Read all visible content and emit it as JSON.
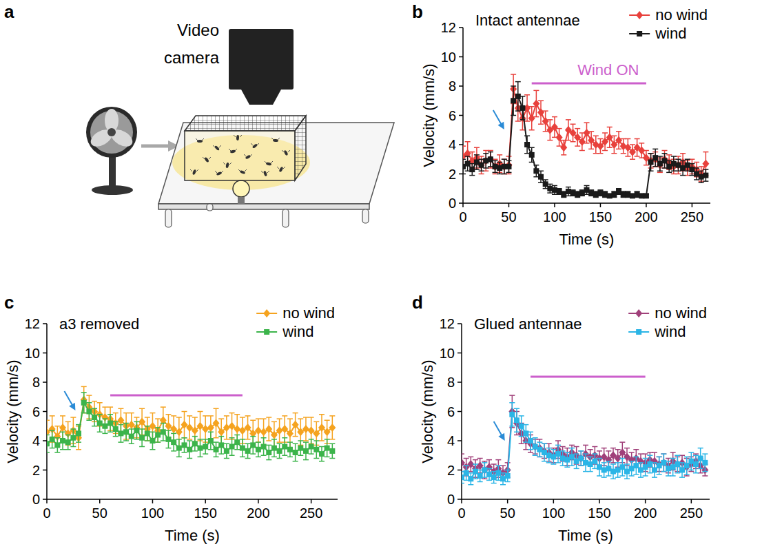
{
  "diagram": {
    "panel": "a",
    "label": "Video camera"
  },
  "chart_data": [
    {
      "panel": "b",
      "type": "line",
      "title": "Intact antennae",
      "x_label": "Time (s)",
      "y_label": "Velocity (mm/s)",
      "annotation": "Wind ON",
      "wind_period": [
        75,
        200
      ],
      "stimulus_time": 45,
      "xlim": [
        0,
        270
      ],
      "xticks": [
        0,
        50,
        100,
        150,
        200,
        250
      ],
      "ylim": [
        0,
        12
      ],
      "yticks": [
        0,
        2,
        4,
        6,
        8,
        10,
        12
      ],
      "grid": false,
      "legend": "top-right",
      "x": [
        0,
        5,
        10,
        15,
        20,
        25,
        30,
        35,
        40,
        45,
        50,
        55,
        60,
        65,
        70,
        75,
        80,
        85,
        90,
        95,
        100,
        105,
        110,
        115,
        120,
        125,
        130,
        135,
        140,
        145,
        150,
        155,
        160,
        165,
        170,
        175,
        180,
        185,
        190,
        195,
        200,
        205,
        210,
        215,
        220,
        225,
        230,
        235,
        240,
        245,
        250,
        255,
        260,
        265
      ],
      "series": [
        {
          "name": "no wind",
          "color": "#e8413c",
          "marker": "diamond",
          "values": [
            3.2,
            3.4,
            2.9,
            3.1,
            2.6,
            2.9,
            3.0,
            2.5,
            2.7,
            2.5,
            2.6,
            7.8,
            6.5,
            5.8,
            6.5,
            5.8,
            6.8,
            6.2,
            5.6,
            5.0,
            5.2,
            4.5,
            3.8,
            5.0,
            4.8,
            4.5,
            4.2,
            4.8,
            4.3,
            4.0,
            3.9,
            4.2,
            4.5,
            4.0,
            4.3,
            3.9,
            3.8,
            3.5,
            3.8,
            3.6,
            3.1,
            2.9,
            3.0,
            2.6,
            3.0,
            2.8,
            2.5,
            2.6,
            2.8,
            2.4,
            2.5,
            2.3,
            2.0,
            2.7
          ],
          "errors": [
            0.7,
            0.8,
            0.6,
            0.7,
            0.6,
            0.7,
            0.6,
            0.5,
            0.6,
            0.5,
            0.6,
            1.0,
            0.9,
            0.8,
            0.9,
            0.8,
            0.9,
            0.8,
            0.7,
            0.7,
            0.7,
            0.6,
            0.5,
            0.7,
            0.6,
            0.6,
            0.6,
            0.7,
            0.6,
            0.6,
            0.5,
            0.6,
            0.7,
            0.6,
            0.6,
            0.5,
            0.6,
            0.5,
            0.6,
            0.5,
            0.5,
            0.5,
            0.5,
            0.5,
            0.6,
            0.5,
            0.5,
            0.6,
            0.6,
            0.5,
            0.5,
            0.5,
            0.5,
            0.8
          ]
        },
        {
          "name": "wind",
          "color": "#1a1a1a",
          "marker": "square",
          "values": [
            2.5,
            2.7,
            2.3,
            2.8,
            2.6,
            2.9,
            3.0,
            2.5,
            2.4,
            2.5,
            2.5,
            7.0,
            7.3,
            6.5,
            4.0,
            3.3,
            2.2,
            1.8,
            1.3,
            1.0,
            0.9,
            0.8,
            0.6,
            0.8,
            0.7,
            0.6,
            0.7,
            0.9,
            0.7,
            0.6,
            0.7,
            0.6,
            0.5,
            0.6,
            0.8,
            0.6,
            0.6,
            0.5,
            0.6,
            0.5,
            0.5,
            2.8,
            3.1,
            2.7,
            2.9,
            2.5,
            2.7,
            2.6,
            2.4,
            2.6,
            2.3,
            2.0,
            1.8,
            1.9
          ],
          "errors": [
            0.5,
            0.5,
            0.4,
            0.5,
            0.4,
            0.5,
            0.5,
            0.4,
            0.4,
            0.5,
            0.4,
            1.0,
            1.0,
            0.8,
            0.6,
            0.5,
            0.4,
            0.4,
            0.3,
            0.3,
            0.3,
            0.2,
            0.2,
            0.3,
            0.2,
            0.2,
            0.2,
            0.3,
            0.2,
            0.2,
            0.2,
            0.2,
            0.1,
            0.2,
            0.2,
            0.2,
            0.2,
            0.1,
            0.2,
            0.1,
            0.1,
            0.6,
            0.6,
            0.5,
            0.5,
            0.4,
            0.5,
            0.4,
            0.5,
            0.4,
            0.4,
            0.4,
            0.4,
            0.4
          ]
        }
      ]
    },
    {
      "panel": "c",
      "type": "line",
      "title": "a3 removed",
      "x_label": "Time (s)",
      "y_label": "Velocity (mm/s)",
      "wind_period": [
        60,
        185
      ],
      "stimulus_time": 27,
      "xlim": [
        0,
        275
      ],
      "xticks": [
        0,
        50,
        100,
        150,
        200,
        250
      ],
      "ylim": [
        0,
        12
      ],
      "yticks": [
        0,
        2,
        4,
        6,
        8,
        10,
        12
      ],
      "grid": false,
      "legend": "top-right",
      "x": [
        0,
        5,
        10,
        15,
        20,
        25,
        30,
        35,
        40,
        45,
        50,
        55,
        60,
        65,
        70,
        75,
        80,
        85,
        90,
        95,
        100,
        105,
        110,
        115,
        120,
        125,
        130,
        135,
        140,
        145,
        150,
        155,
        160,
        165,
        170,
        175,
        180,
        185,
        190,
        195,
        200,
        205,
        210,
        215,
        220,
        225,
        230,
        235,
        240,
        245,
        250,
        255,
        260,
        265,
        270
      ],
      "series": [
        {
          "name": "no wind",
          "color": "#f5a31f",
          "marker": "diamond",
          "values": [
            4.6,
            4.8,
            4.3,
            4.9,
            4.5,
            4.7,
            4.2,
            6.8,
            6.3,
            6.0,
            5.8,
            5.6,
            5.5,
            5.2,
            5.4,
            5.0,
            5.1,
            4.9,
            5.3,
            4.8,
            5.0,
            4.7,
            5.4,
            5.0,
            4.8,
            4.6,
            5.1,
            4.9,
            4.7,
            5.0,
            4.8,
            4.9,
            5.2,
            4.6,
            4.9,
            5.0,
            4.8,
            4.7,
            4.9,
            4.5,
            4.7,
            4.6,
            4.8,
            4.4,
            4.7,
            4.8,
            4.5,
            5.1,
            4.6,
            4.8,
            4.7,
            4.5,
            4.9,
            4.6,
            4.9
          ],
          "errors": [
            0.8,
            0.9,
            0.7,
            0.8,
            0.8,
            0.9,
            0.8,
            0.9,
            0.8,
            0.7,
            0.8,
            0.7,
            0.8,
            0.7,
            0.8,
            0.9,
            0.8,
            0.7,
            0.9,
            0.8,
            0.9,
            0.8,
            0.9,
            0.8,
            0.9,
            1.0,
            0.9,
            0.8,
            0.9,
            1.0,
            0.9,
            0.8,
            1.0,
            0.9,
            0.8,
            0.9,
            1.0,
            0.9,
            0.8,
            0.9,
            0.8,
            0.9,
            0.8,
            0.9,
            0.8,
            0.9,
            1.0,
            0.8,
            0.9,
            0.8,
            0.9,
            0.8,
            0.9,
            0.8,
            0.8
          ]
        },
        {
          "name": "wind",
          "color": "#3cb44b",
          "marker": "square",
          "values": [
            3.8,
            4.1,
            3.7,
            4.0,
            3.9,
            4.2,
            4.5,
            6.6,
            6.0,
            5.6,
            5.2,
            5.0,
            5.2,
            4.8,
            4.5,
            4.6,
            4.3,
            4.7,
            4.2,
            4.5,
            4.0,
            4.4,
            4.6,
            4.1,
            3.9,
            3.5,
            3.7,
            3.4,
            3.8,
            3.5,
            3.6,
            4.0,
            3.4,
            3.7,
            3.3,
            3.6,
            3.9,
            3.5,
            3.3,
            3.7,
            3.4,
            3.6,
            3.2,
            3.5,
            3.3,
            3.6,
            3.4,
            3.2,
            3.5,
            3.3,
            3.6,
            3.4,
            3.1,
            3.5,
            3.3
          ],
          "errors": [
            0.6,
            0.6,
            0.5,
            0.6,
            0.5,
            0.6,
            0.6,
            0.7,
            0.6,
            0.6,
            0.6,
            0.5,
            0.6,
            0.5,
            0.6,
            0.6,
            0.5,
            0.6,
            0.6,
            0.5,
            0.6,
            0.5,
            0.6,
            0.6,
            0.6,
            0.6,
            0.5,
            0.6,
            0.5,
            0.6,
            0.5,
            0.6,
            0.5,
            0.6,
            0.5,
            0.6,
            0.5,
            0.6,
            0.5,
            0.6,
            0.5,
            0.6,
            0.5,
            0.6,
            0.5,
            0.6,
            0.5,
            0.6,
            0.5,
            0.6,
            0.5,
            0.6,
            0.5,
            0.6,
            0.5
          ]
        }
      ]
    },
    {
      "panel": "d",
      "type": "line",
      "title": "Glued antennae",
      "x_label": "Time (s)",
      "y_label": "Velocity (mm/s)",
      "wind_period": [
        75,
        200
      ],
      "stimulus_time": 47,
      "xlim": [
        0,
        270
      ],
      "xticks": [
        0,
        50,
        100,
        150,
        200,
        250
      ],
      "ylim": [
        0,
        12
      ],
      "yticks": [
        0,
        2,
        4,
        6,
        8,
        10,
        12
      ],
      "grid": false,
      "legend": "top-right",
      "x": [
        0,
        5,
        10,
        15,
        20,
        25,
        30,
        35,
        40,
        45,
        50,
        55,
        60,
        65,
        70,
        75,
        80,
        85,
        90,
        95,
        100,
        105,
        110,
        115,
        120,
        125,
        130,
        135,
        140,
        145,
        150,
        155,
        160,
        165,
        170,
        175,
        180,
        185,
        190,
        195,
        200,
        205,
        210,
        215,
        220,
        225,
        230,
        235,
        240,
        245,
        250,
        255,
        260,
        265
      ],
      "series": [
        {
          "name": "no wind",
          "color": "#a0407a",
          "marker": "diamond",
          "values": [
            2.5,
            2.2,
            2.4,
            2.1,
            2.3,
            2.0,
            2.2,
            1.9,
            2.1,
            1.8,
            2.0,
            6.0,
            5.2,
            4.5,
            4.0,
            3.8,
            3.6,
            3.5,
            3.3,
            3.2,
            3.0,
            3.4,
            3.1,
            2.9,
            3.2,
            3.0,
            2.8,
            3.1,
            2.9,
            3.0,
            2.8,
            2.9,
            2.7,
            3.0,
            2.8,
            3.2,
            2.9,
            2.7,
            2.8,
            2.6,
            2.5,
            2.7,
            2.6,
            2.4,
            2.5,
            2.3,
            2.6,
            2.4,
            2.5,
            2.2,
            2.4,
            2.6,
            2.3,
            2.0
          ],
          "errors": [
            0.6,
            0.6,
            0.5,
            0.6,
            0.5,
            0.6,
            0.5,
            0.5,
            0.6,
            0.5,
            0.5,
            1.1,
            0.8,
            0.7,
            0.6,
            0.6,
            0.5,
            0.6,
            0.5,
            0.6,
            0.5,
            0.6,
            0.5,
            0.6,
            0.5,
            0.6,
            0.5,
            0.6,
            0.5,
            0.6,
            0.5,
            0.6,
            0.6,
            0.5,
            0.6,
            0.7,
            0.6,
            0.5,
            0.6,
            0.5,
            0.6,
            0.5,
            0.6,
            0.5,
            0.6,
            0.5,
            0.6,
            0.5,
            0.5,
            0.6,
            0.5,
            0.5,
            0.5,
            0.4
          ]
        },
        {
          "name": "wind",
          "color": "#2bb5e6",
          "marker": "square",
          "values": [
            1.5,
            1.8,
            1.4,
            1.9,
            1.6,
            2.0,
            1.7,
            1.5,
            1.8,
            1.4,
            1.6,
            5.8,
            5.4,
            5.0,
            4.5,
            4.0,
            3.6,
            3.4,
            3.2,
            3.0,
            2.9,
            3.1,
            2.8,
            2.7,
            2.9,
            2.6,
            2.8,
            2.5,
            2.4,
            2.6,
            2.2,
            2.0,
            2.1,
            1.9,
            2.0,
            2.2,
            1.9,
            2.1,
            2.3,
            2.0,
            2.2,
            2.4,
            2.0,
            2.3,
            2.5,
            2.1,
            2.2,
            2.4,
            2.0,
            2.3,
            2.6,
            2.4,
            2.8,
            2.5
          ],
          "errors": [
            0.4,
            0.5,
            0.4,
            0.5,
            0.4,
            0.5,
            0.4,
            0.4,
            0.5,
            0.4,
            0.4,
            0.8,
            0.8,
            0.7,
            0.6,
            0.6,
            0.6,
            0.5,
            0.6,
            0.5,
            0.5,
            0.6,
            0.5,
            0.5,
            0.6,
            0.5,
            0.5,
            0.6,
            0.5,
            0.5,
            0.6,
            0.5,
            0.5,
            0.5,
            0.5,
            0.6,
            0.5,
            0.5,
            0.6,
            0.5,
            0.6,
            0.6,
            0.5,
            0.6,
            0.6,
            0.5,
            0.6,
            0.6,
            0.5,
            0.6,
            0.6,
            0.6,
            0.7,
            0.6
          ]
        }
      ]
    }
  ]
}
